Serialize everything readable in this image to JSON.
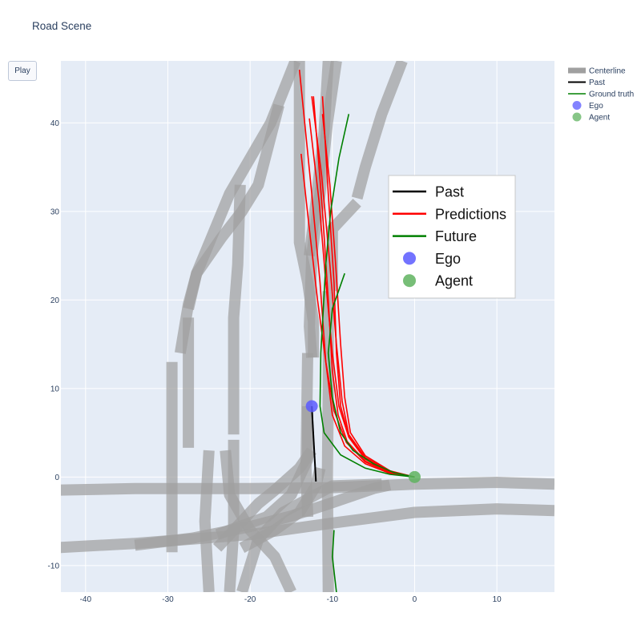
{
  "page": {
    "title": "Road Scene"
  },
  "controls": {
    "play_label": "Play"
  },
  "colors": {
    "plot_bg": "#e5ecf6",
    "grid": "#ffffff",
    "centerline": "#a0a0a0",
    "past": "#000000",
    "prediction": "#ff0000",
    "future": "#008000",
    "ego": "#5a5aff",
    "agent": "#5fb35f"
  },
  "chart_data": {
    "type": "scatter",
    "title": "Road Scene",
    "xlim": [
      -43,
      17
    ],
    "ylim": [
      -13,
      47
    ],
    "x_ticks": [
      -40,
      -30,
      -20,
      -10,
      0,
      10
    ],
    "y_ticks": [
      -10,
      0,
      10,
      20,
      30,
      40
    ],
    "grid": true,
    "legend": {
      "placement": "right",
      "entries": [
        "Centerline",
        "Past",
        "Ground truth",
        "Ego",
        "Agent"
      ]
    },
    "inner_legend": {
      "placement": "top-right",
      "entries": [
        "Past",
        "Predictions",
        "Future",
        "Ego",
        "Agent"
      ]
    },
    "centerlines": [
      [
        [
          -44,
          -1.5
        ],
        [
          -34,
          -1.3
        ],
        [
          -20,
          -1.3
        ],
        [
          -10,
          -1.2
        ],
        [
          0,
          -0.8
        ],
        [
          10,
          -0.6
        ],
        [
          17,
          -0.8
        ]
      ],
      [
        [
          -44,
          -8
        ],
        [
          -34,
          -7.5
        ],
        [
          -20,
          -6.5
        ],
        [
          -10,
          -5.2
        ],
        [
          0,
          -4
        ],
        [
          10,
          -3.6
        ],
        [
          17,
          -3.8
        ]
      ],
      [
        [
          -34,
          -7.7
        ],
        [
          -27,
          -6.9
        ],
        [
          -20,
          -5.6
        ],
        [
          -15,
          -4.4
        ],
        [
          -10,
          -2.9
        ],
        [
          -5,
          -1.3
        ],
        [
          -3,
          -0.9
        ]
      ],
      [
        [
          -13,
          -4.5
        ],
        [
          -13.2,
          1
        ],
        [
          -13,
          14
        ]
      ],
      [
        [
          -10.5,
          -13
        ],
        [
          -10.6,
          0
        ],
        [
          -10.5,
          10
        ],
        [
          -10.5,
          21
        ]
      ],
      [
        [
          -12.3,
          13.5
        ],
        [
          -12.3,
          17.5
        ],
        [
          -13,
          22
        ],
        [
          -14,
          26.5
        ],
        [
          -14,
          47
        ]
      ],
      [
        [
          -12.5,
          13.5
        ],
        [
          -12.8,
          17
        ],
        [
          -12.5,
          25
        ],
        [
          -11.5,
          32
        ],
        [
          -10.6,
          40
        ],
        [
          -9.5,
          47
        ]
      ],
      [
        [
          -10,
          21
        ],
        [
          -10,
          28
        ],
        [
          -7,
          31
        ]
      ],
      [
        [
          -7,
          31.5
        ],
        [
          -6,
          35
        ],
        [
          -4,
          41
        ],
        [
          -1.5,
          47
        ]
      ],
      [
        [
          -12.8,
          25
        ],
        [
          -12,
          31
        ],
        [
          -11,
          39
        ],
        [
          -10.5,
          47
        ]
      ],
      [
        [
          -27.5,
          3.3
        ],
        [
          -27.5,
          18
        ]
      ],
      [
        [
          -27.5,
          19
        ],
        [
          -26.5,
          23
        ],
        [
          -23.5,
          27
        ],
        [
          -21,
          30
        ],
        [
          -19,
          33
        ],
        [
          -16.5,
          42
        ]
      ],
      [
        [
          -29.5,
          -8.5
        ],
        [
          -29.5,
          2
        ],
        [
          -29.5,
          13
        ]
      ],
      [
        [
          -28.5,
          14
        ],
        [
          -27.5,
          19.5
        ],
        [
          -26.5,
          23
        ],
        [
          -22.5,
          32
        ],
        [
          -17.5,
          40
        ],
        [
          -14.5,
          47
        ]
      ],
      [
        [
          -22,
          4.8
        ],
        [
          -22,
          10
        ],
        [
          -22,
          18
        ],
        [
          -21.5,
          24
        ],
        [
          -21.2,
          33
        ]
      ],
      [
        [
          -22.5,
          -13
        ],
        [
          -22,
          -6
        ],
        [
          -22,
          4.2
        ]
      ],
      [
        [
          -25,
          -13
        ],
        [
          -25.5,
          -5
        ],
        [
          -25,
          3
        ]
      ],
      [
        [
          -23,
          3
        ],
        [
          -22.5,
          -2
        ],
        [
          -20,
          -6
        ],
        [
          -17,
          -9
        ],
        [
          -15,
          -13
        ]
      ],
      [
        [
          -24,
          -8
        ],
        [
          -21,
          -5
        ],
        [
          -19,
          -3
        ],
        [
          -17,
          -1.5
        ],
        [
          -14,
          1
        ],
        [
          -12.5,
          3
        ]
      ],
      [
        [
          -21,
          -13
        ],
        [
          -19,
          -7
        ],
        [
          -16,
          -4
        ],
        [
          -13,
          -2.5
        ],
        [
          -10,
          -1
        ],
        [
          -4,
          -0.8
        ]
      ],
      [
        [
          -21,
          -8
        ],
        [
          -17,
          -6
        ],
        [
          -14,
          -4
        ],
        [
          -12,
          -1
        ],
        [
          -11.5,
          1
        ]
      ],
      [
        [
          -13,
          8
        ],
        [
          -13,
          2
        ],
        [
          -15,
          -2
        ],
        [
          -18,
          -4.5
        ],
        [
          -24,
          -6.5
        ]
      ]
    ],
    "past": [
      [
        -12,
        -0.5
      ],
      [
        -12.5,
        8
      ]
    ],
    "predictions": [
      [
        [
          0,
          0
        ],
        [
          -3,
          0.4
        ],
        [
          -6,
          1.5
        ],
        [
          -8.5,
          3.5
        ],
        [
          -10,
          7
        ],
        [
          -10.8,
          13
        ],
        [
          -11.5,
          22
        ],
        [
          -12.5,
          32
        ],
        [
          -14,
          46
        ]
      ],
      [
        [
          0,
          0
        ],
        [
          -3,
          0.5
        ],
        [
          -6,
          1.8
        ],
        [
          -8.2,
          4
        ],
        [
          -9.3,
          7
        ],
        [
          -10,
          12
        ],
        [
          -10.5,
          20
        ],
        [
          -11.2,
          30
        ],
        [
          -12.3,
          43
        ]
      ],
      [
        [
          0,
          0
        ],
        [
          -3,
          0.6
        ],
        [
          -6,
          2.1
        ],
        [
          -8,
          4.6
        ],
        [
          -9,
          8
        ],
        [
          -9.5,
          14
        ],
        [
          -9.8,
          22
        ],
        [
          -10.5,
          32
        ],
        [
          -11.2,
          43
        ]
      ],
      [
        [
          0,
          0
        ],
        [
          -3,
          0.6
        ],
        [
          -6,
          2.2
        ],
        [
          -8,
          4.8
        ],
        [
          -8.8,
          8.5
        ],
        [
          -9.5,
          15
        ],
        [
          -10.3,
          24
        ],
        [
          -11.3,
          34
        ],
        [
          -12.5,
          43
        ]
      ],
      [
        [
          0,
          0
        ],
        [
          -3,
          0.7
        ],
        [
          -6,
          2.4
        ],
        [
          -7.8,
          5
        ],
        [
          -8.5,
          9
        ],
        [
          -9,
          15
        ],
        [
          -9.6,
          24
        ],
        [
          -10.3,
          33
        ],
        [
          -11.2,
          41
        ]
      ],
      [
        [
          0,
          0
        ],
        [
          -3,
          0.5
        ],
        [
          -6,
          1.7
        ],
        [
          -8.3,
          3.9
        ],
        [
          -9.8,
          7.5
        ],
        [
          -10.8,
          13
        ],
        [
          -11.8,
          20
        ],
        [
          -12.8,
          28
        ],
        [
          -13.8,
          36.5
        ]
      ],
      [
        [
          0,
          0
        ],
        [
          -3,
          0.6
        ],
        [
          -6,
          2
        ],
        [
          -8,
          4.5
        ],
        [
          -9.2,
          8
        ],
        [
          -10,
          14
        ],
        [
          -10.8,
          22
        ],
        [
          -11.6,
          31
        ],
        [
          -12.8,
          40.5
        ]
      ]
    ],
    "future": [
      [
        [
          0,
          0
        ],
        [
          -3,
          0.3
        ],
        [
          -6,
          1
        ],
        [
          -9,
          2.5
        ],
        [
          -11,
          5
        ],
        [
          -11.5,
          8
        ],
        [
          -11.4,
          14
        ],
        [
          -10.8,
          24
        ],
        [
          -10.2,
          30
        ],
        [
          -9.2,
          36
        ],
        [
          -8,
          41
        ]
      ],
      [
        [
          0,
          0
        ],
        [
          -2.5,
          0.5
        ],
        [
          -5,
          1.5
        ],
        [
          -7.5,
          3
        ],
        [
          -9,
          5
        ],
        [
          -10,
          9
        ],
        [
          -10.5,
          14
        ],
        [
          -10,
          19
        ],
        [
          -8.5,
          23
        ]
      ],
      [
        [
          -9.5,
          -13
        ],
        [
          -10,
          -9
        ],
        [
          -9.8,
          -6
        ]
      ]
    ],
    "ego": {
      "x": -12.5,
      "y": 8
    },
    "agent": {
      "x": 0,
      "y": 0
    }
  }
}
